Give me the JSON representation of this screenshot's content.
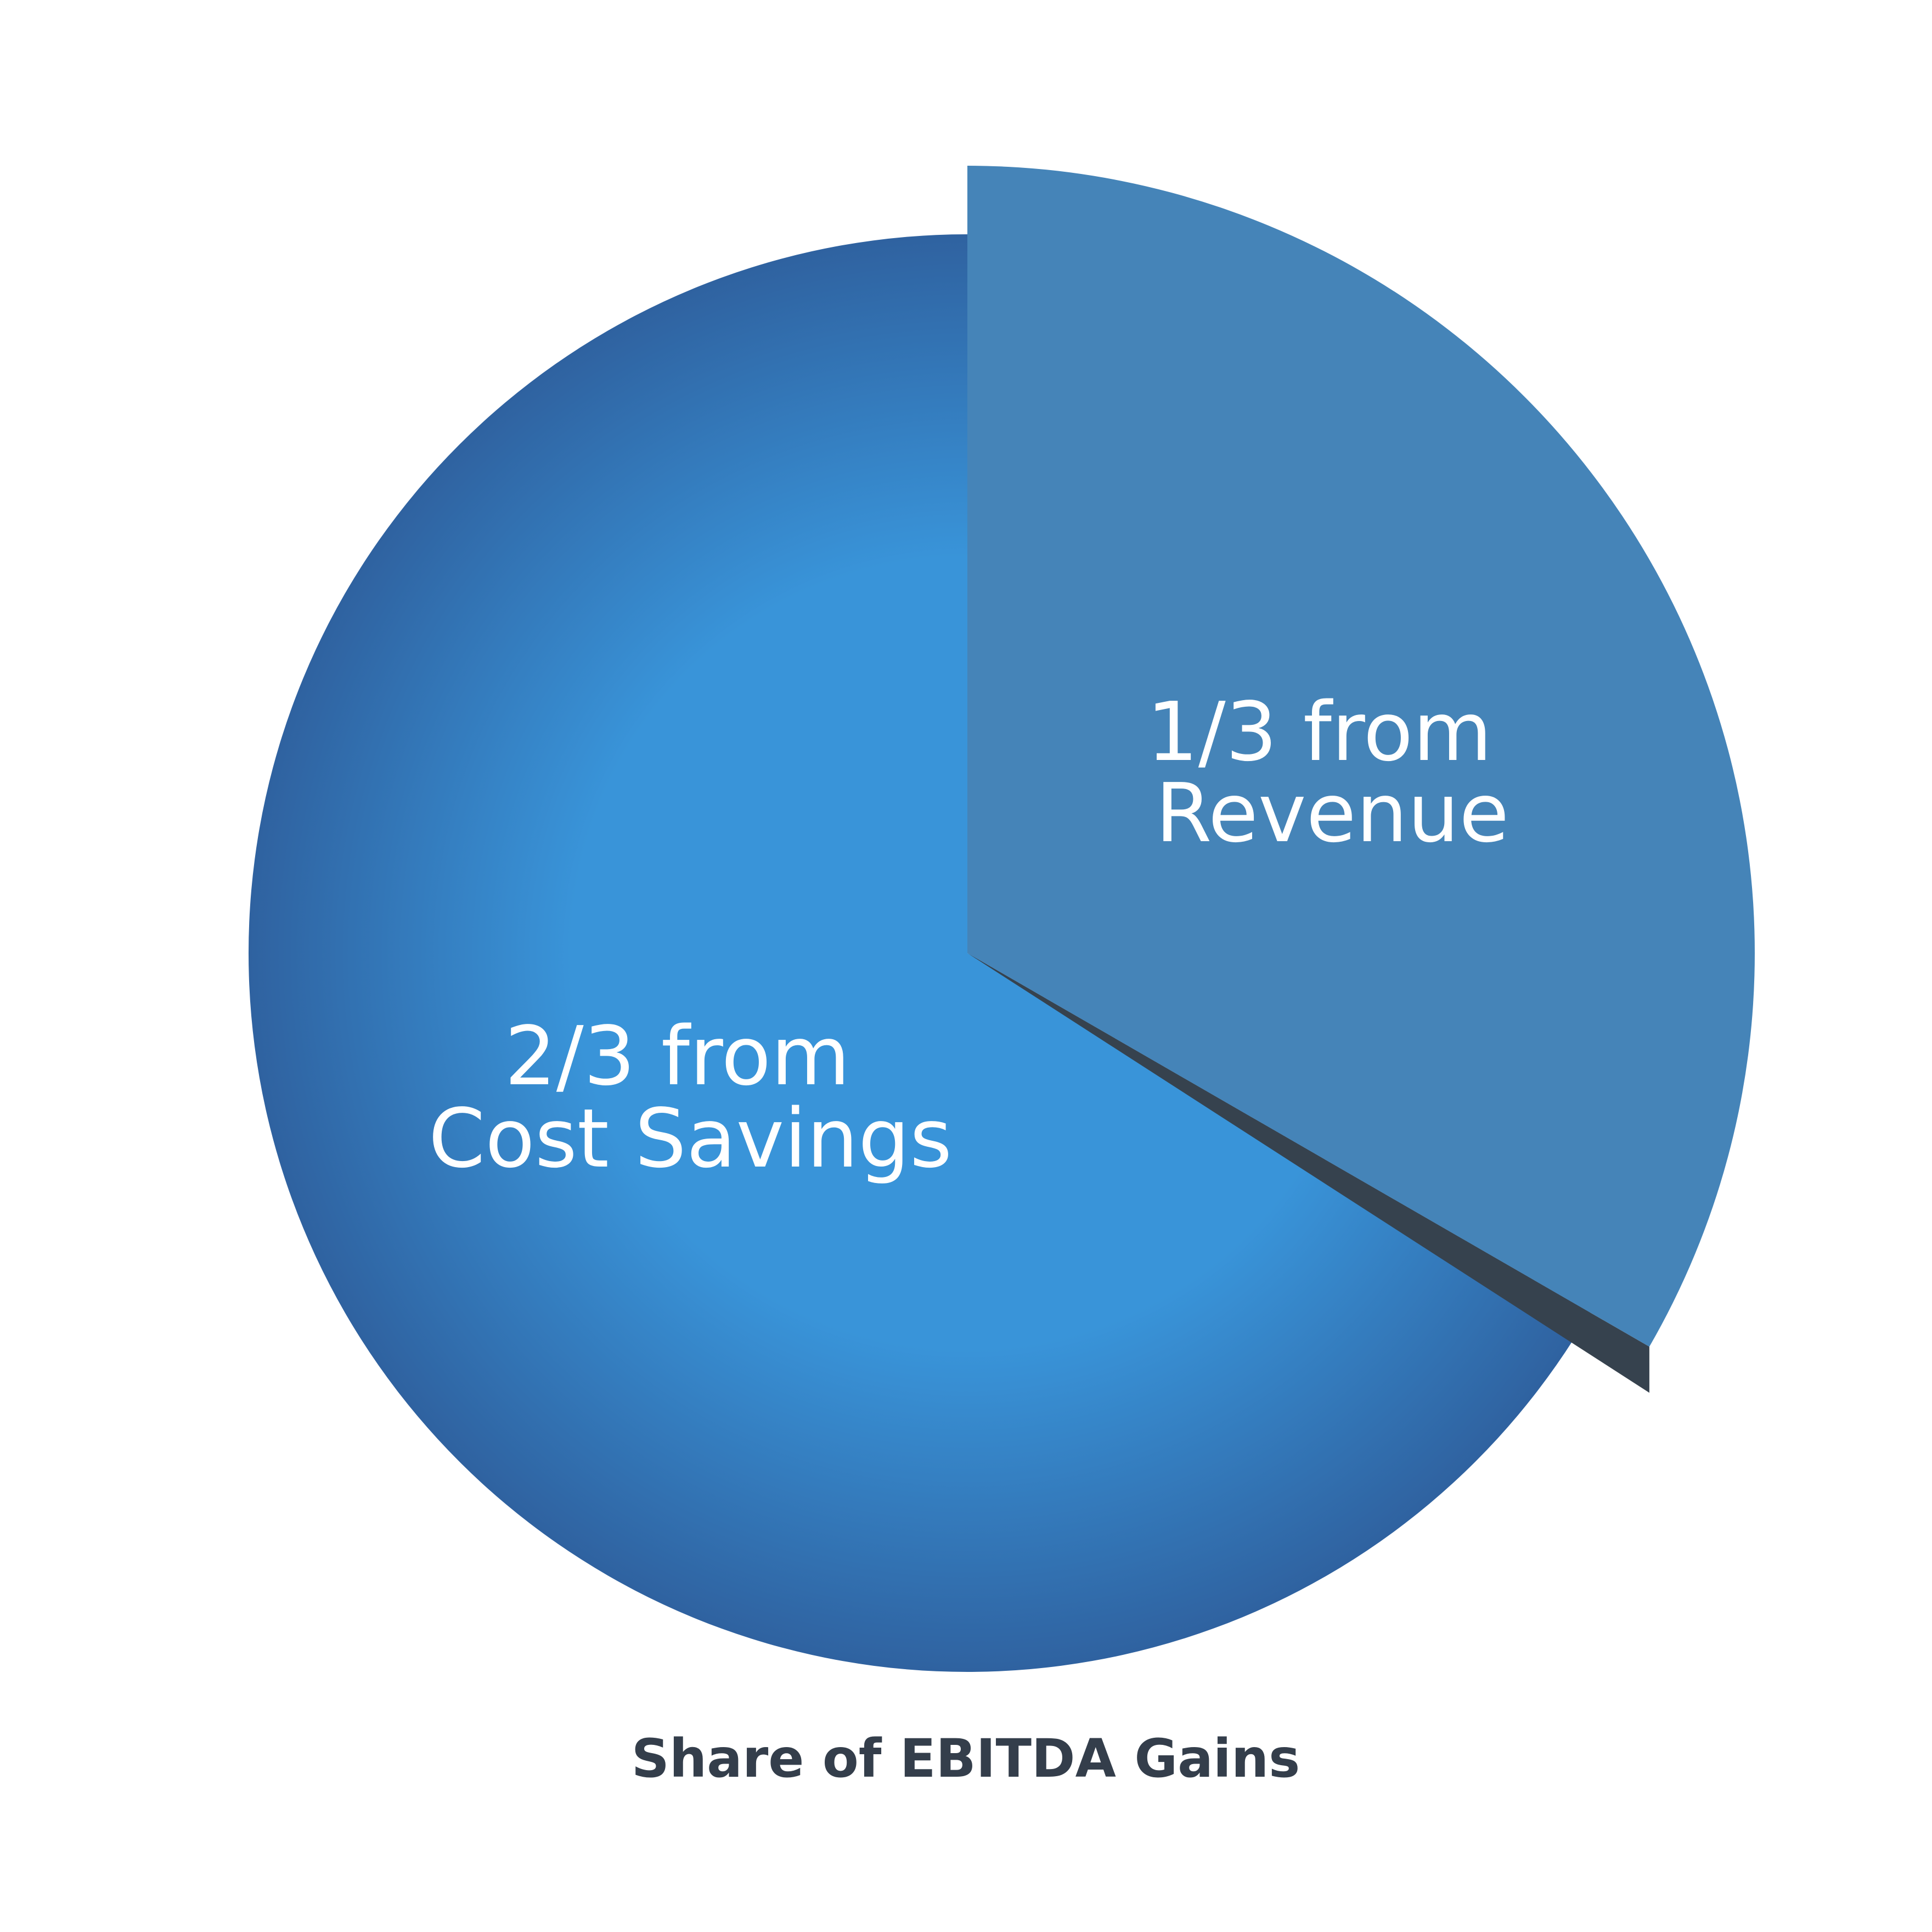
{
  "chart_data": {
    "type": "pie",
    "title": "Share of EBITDA Gains",
    "slices": [
      {
        "name": "Cost Savings",
        "value": 0.6667,
        "label_lines": [
          "2/3 from",
          "Cost Savings"
        ],
        "color": "#3994d9",
        "edge_color": "#2f62a0",
        "exploded": false
      },
      {
        "name": "Revenue",
        "value": 0.3333,
        "label_lines": [
          "1/3 from",
          "Revenue"
        ],
        "color": "#4584b8",
        "exploded": true
      }
    ],
    "shadow_color": "#36424e",
    "legend": "none",
    "grid": false
  }
}
